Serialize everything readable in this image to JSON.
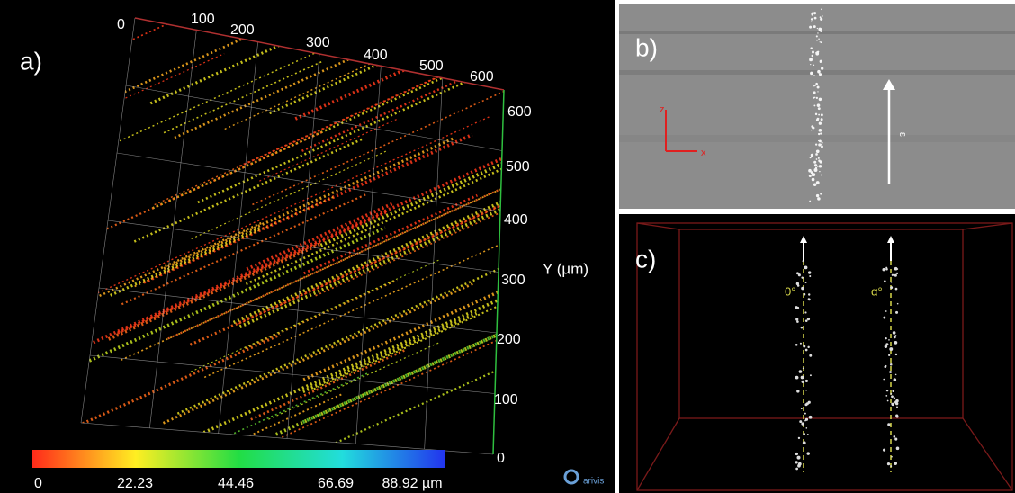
{
  "panel_a": {
    "label": "a)",
    "top_ticks": [
      "0",
      "100",
      "200",
      "300",
      "400",
      "500",
      "600"
    ],
    "y_ticks": [
      "600",
      "500",
      "400",
      "300",
      "200",
      "100",
      "0"
    ],
    "y_axis_title": "Y (µm)",
    "colorbar_ticks": [
      "0",
      "22.23",
      "44.46",
      "66.69",
      "88.92 µm"
    ],
    "logo": "arivis"
  },
  "panel_b": {
    "label": "b)",
    "axis_z": "z",
    "axis_x": "x",
    "arrow_label": "ε"
  },
  "panel_c": {
    "label": "c)",
    "angle_left": "0°",
    "angle_right": "α°"
  }
}
